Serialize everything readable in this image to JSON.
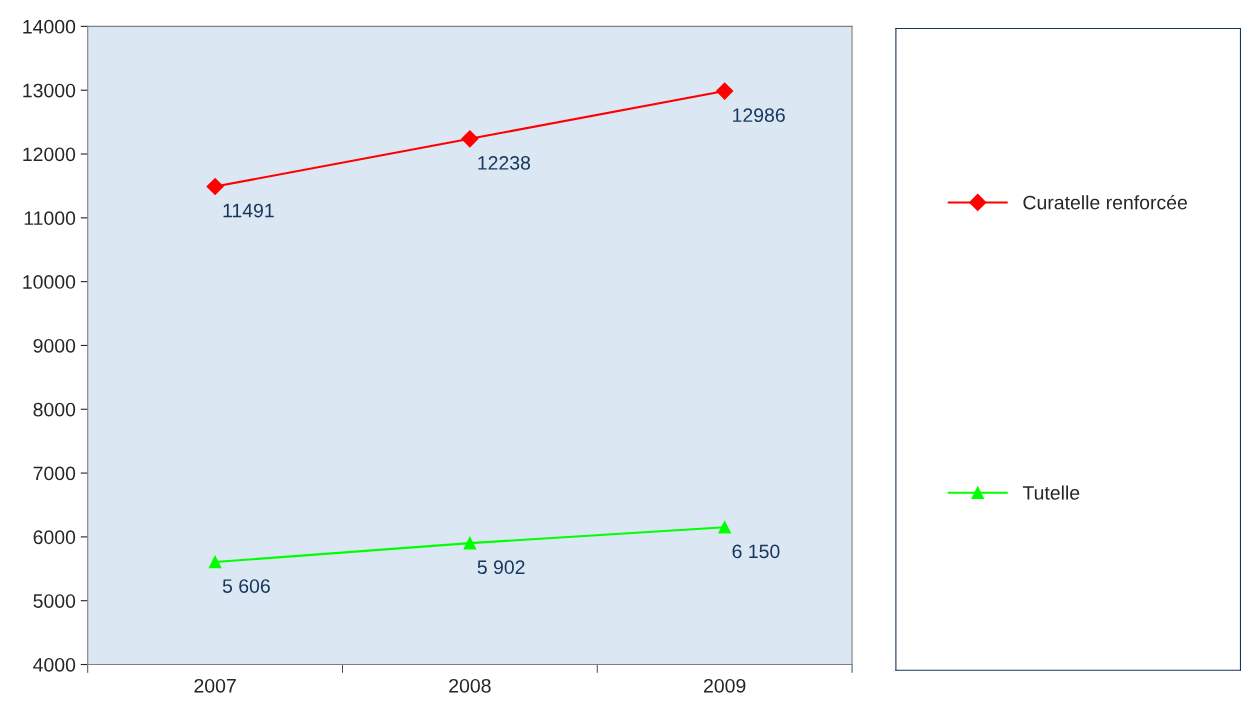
{
  "chart_data": {
    "type": "line",
    "categories": [
      "2007",
      "2008",
      "2009"
    ],
    "series": [
      {
        "name": "Curatelle renforcée",
        "color": "#ff0000",
        "marker": "diamond",
        "values": [
          11491,
          12238,
          12986
        ],
        "value_labels": [
          "11491",
          "12238",
          "12986"
        ]
      },
      {
        "name": "Tutelle",
        "color": "#00ff00",
        "marker": "triangle",
        "values": [
          5606,
          5902,
          6150
        ],
        "value_labels": [
          "5 606",
          "5 902",
          "6 150"
        ]
      }
    ],
    "ylim": [
      4000,
      14000
    ],
    "yticks": [
      4000,
      5000,
      6000,
      7000,
      8000,
      9000,
      10000,
      11000,
      12000,
      13000,
      14000
    ],
    "grid": false,
    "legend": "right"
  }
}
